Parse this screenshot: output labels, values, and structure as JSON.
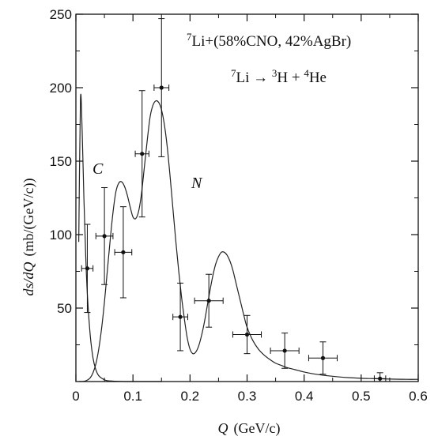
{
  "chart_data": {
    "type": "scatter",
    "xlabel_var": "Q",
    "xlabel_unit": "(GeV/c)",
    "ylabel_var": "ds/dQ",
    "ylabel_unit": "(mb/(GeV/c))",
    "xlim": [
      0,
      0.6
    ],
    "ylim": [
      0,
      250
    ],
    "x_ticks": [
      "0",
      "0.1",
      "0.2",
      "0.3",
      "0.4",
      "0.5",
      "0.6"
    ],
    "y_ticks": [
      "50",
      "100",
      "150",
      "200",
      "250"
    ],
    "grid": false,
    "annotation_line1": {
      "sup1": "7",
      "main": "Li+(58%CNO, 42%AgBr)"
    },
    "annotation_line2": {
      "sup1": "7",
      "a": "Li → ",
      "sup2": "3",
      "b": "H + ",
      "sup3": "4",
      "c": "He"
    },
    "curve_labels": [
      "C",
      "N"
    ],
    "points": [
      {
        "x": 0.02,
        "y": 77,
        "xerr": 0.01,
        "yerr": 30
      },
      {
        "x": 0.05,
        "y": 99,
        "xerr": 0.015,
        "yerr": 33
      },
      {
        "x": 0.083,
        "y": 88,
        "xerr": 0.015,
        "yerr": 31
      },
      {
        "x": 0.116,
        "y": 155,
        "xerr": 0.012,
        "yerr": 43
      },
      {
        "x": 0.15,
        "y": 200,
        "xerr": 0.013,
        "yerr": 47
      },
      {
        "x": 0.183,
        "y": 44,
        "xerr": 0.013,
        "yerr": 23
      },
      {
        "x": 0.233,
        "y": 55,
        "xerr": 0.025,
        "yerr": 18
      },
      {
        "x": 0.3,
        "y": 32,
        "xerr": 0.025,
        "yerr": 13
      },
      {
        "x": 0.366,
        "y": 21,
        "xerr": 0.025,
        "yerr": 12
      },
      {
        "x": 0.433,
        "y": 16,
        "xerr": 0.025,
        "yerr": 11
      },
      {
        "x": 0.533,
        "y": 2,
        "xerr": 0.01,
        "yerr": 4
      }
    ],
    "series": [
      {
        "values_x": [
          0.005,
          0.008,
          0.011,
          0.014,
          0.017,
          0.02,
          0.025,
          0.03,
          0.035,
          0.04,
          0.05,
          0.06,
          0.08,
          0.1,
          0.12,
          0.15
        ],
        "values_y": [
          95,
          192,
          170,
          125,
          88,
          60,
          32,
          16,
          8,
          4,
          1.2,
          0.4,
          0.05,
          0,
          0,
          0
        ]
      },
      {
        "values_x": [
          0.005,
          0.01,
          0.015,
          0.02,
          0.025,
          0.03,
          0.035,
          0.04,
          0.045,
          0.05,
          0.055,
          0.06,
          0.065,
          0.07,
          0.075,
          0.08,
          0.085,
          0.09,
          0.095,
          0.1,
          0.105,
          0.11,
          0.115,
          0.12,
          0.125,
          0.13,
          0.135,
          0.14,
          0.145,
          0.15,
          0.155,
          0.16,
          0.165,
          0.17,
          0.175,
          0.18,
          0.185,
          0.19,
          0.195,
          0.2,
          0.205,
          0.21,
          0.215,
          0.22,
          0.225,
          0.23,
          0.235,
          0.24,
          0.245,
          0.25,
          0.255,
          0.26,
          0.265,
          0.27,
          0.275,
          0.28,
          0.285,
          0.29,
          0.295,
          0.3,
          0.31,
          0.32,
          0.33,
          0.34,
          0.35,
          0.36,
          0.37,
          0.38,
          0.39,
          0.4,
          0.42,
          0.44,
          0.46,
          0.48,
          0.5,
          0.52,
          0.54,
          0.56,
          0.58,
          0.6
        ],
        "values_y": [
          0,
          0,
          0.2,
          1,
          2.5,
          6,
          12,
          22,
          36,
          54,
          75,
          96,
          115,
          129,
          135,
          136,
          133,
          127,
          119,
          112,
          111,
          116,
          128,
          146,
          164,
          180,
          188,
          191,
          190,
          185,
          175,
          160,
          140,
          118,
          96,
          76,
          58,
          43,
          30,
          22,
          19,
          20,
          24,
          31,
          40,
          51,
          62,
          72,
          80,
          85,
          88,
          88,
          86,
          82,
          76,
          68,
          60,
          52,
          44,
          37,
          28,
          22,
          18,
          15,
          12.5,
          11,
          9.5,
          8.5,
          7.5,
          6.5,
          5,
          4,
          3.2,
          2.6,
          2.2,
          2,
          1.8,
          1.6,
          1.5,
          1.5
        ]
      }
    ]
  }
}
